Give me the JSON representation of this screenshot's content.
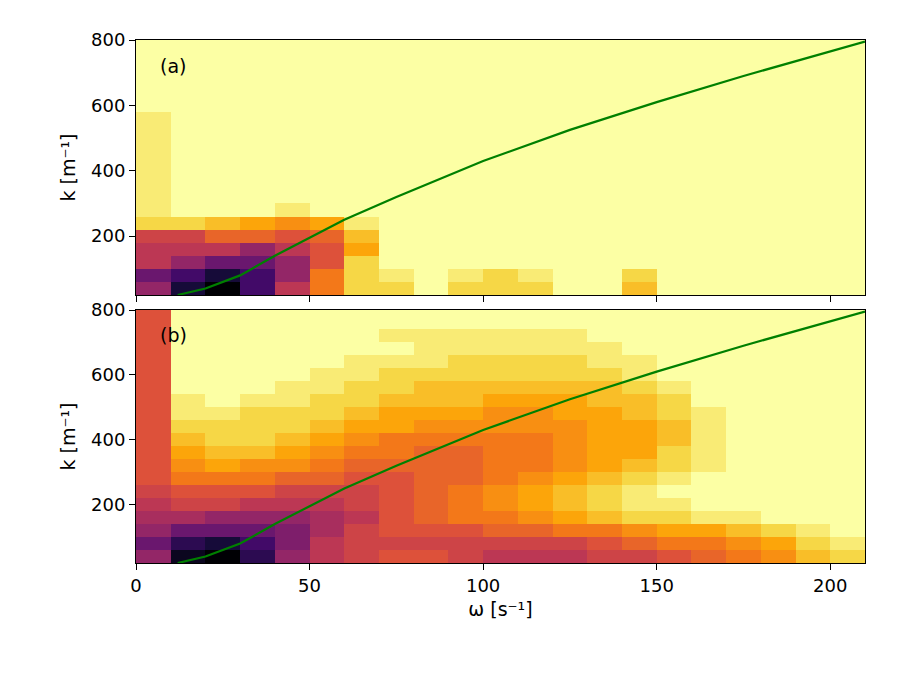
{
  "chart_data": [
    {
      "type": "heatmap",
      "label": "(a)",
      "y_label": "k [m⁻¹]",
      "xlim": [
        0,
        210
      ],
      "ylim": [
        20,
        800
      ],
      "xticks": [
        0,
        50,
        100,
        150,
        200
      ],
      "yticks": [
        200,
        400,
        600,
        800
      ],
      "tick_labels": "y",
      "grid": false,
      "omega_bins": [
        0,
        10,
        20,
        30,
        40,
        50,
        60,
        70,
        80,
        90,
        100,
        110,
        120,
        130,
        140,
        150,
        160,
        170,
        180,
        190,
        200,
        210
      ],
      "k_bins": [
        20,
        60,
        100,
        140,
        180,
        220,
        260,
        300,
        340,
        380,
        420,
        460,
        500,
        540,
        580,
        620,
        660,
        700,
        740,
        780,
        800
      ],
      "zlim": [
        0,
        1
      ],
      "cells": [
        [
          0.6,
          0.9,
          1,
          0.8,
          0.5,
          0.3,
          0.1,
          0.1,
          0,
          0.1,
          0.1,
          0.1,
          0,
          0,
          0.15,
          0,
          0,
          0,
          0,
          0,
          0
        ],
        [
          0.7,
          0.8,
          0.9,
          0.8,
          0.6,
          0.3,
          0.1,
          0.05,
          0,
          0.05,
          0.1,
          0.05,
          0,
          0,
          0.1,
          0,
          0,
          0,
          0,
          0,
          0
        ],
        [
          0.5,
          0.6,
          0.7,
          0.7,
          0.6,
          0.4,
          0.1,
          0,
          0,
          0,
          0,
          0,
          0,
          0,
          0,
          0,
          0,
          0,
          0,
          0,
          0
        ],
        [
          0.5,
          0.5,
          0.5,
          0.6,
          0.5,
          0.4,
          0.2,
          0,
          0,
          0,
          0,
          0,
          0,
          0,
          0,
          0,
          0,
          0,
          0,
          0,
          0
        ],
        [
          0.45,
          0.45,
          0.35,
          0.35,
          0.4,
          0.35,
          0.15,
          0,
          0,
          0,
          0,
          0,
          0,
          0,
          0,
          0,
          0,
          0,
          0,
          0,
          0
        ],
        [
          0.1,
          0.1,
          0.15,
          0.2,
          0.25,
          0.2,
          0.05,
          0,
          0,
          0,
          0,
          0,
          0,
          0,
          0,
          0,
          0,
          0,
          0,
          0,
          0
        ],
        [
          0.05,
          0,
          0,
          0,
          0.05,
          0,
          0,
          0,
          0,
          0,
          0,
          0,
          0,
          0,
          0,
          0,
          0,
          0,
          0,
          0,
          0
        ],
        [
          0.05,
          0,
          0,
          0,
          0,
          0,
          0,
          0,
          0,
          0,
          0,
          0,
          0,
          0,
          0,
          0,
          0,
          0,
          0,
          0,
          0
        ],
        [
          0.05,
          0,
          0,
          0,
          0,
          0,
          0,
          0,
          0,
          0,
          0,
          0,
          0,
          0,
          0,
          0,
          0,
          0,
          0,
          0,
          0
        ],
        [
          0.05,
          0,
          0,
          0,
          0,
          0,
          0,
          0,
          0,
          0,
          0,
          0,
          0,
          0,
          0,
          0,
          0,
          0,
          0,
          0,
          0
        ],
        [
          0.05,
          0,
          0,
          0,
          0,
          0,
          0,
          0,
          0,
          0,
          0,
          0,
          0,
          0,
          0,
          0,
          0,
          0,
          0,
          0,
          0
        ],
        [
          0.05,
          0,
          0,
          0,
          0,
          0,
          0,
          0,
          0,
          0,
          0,
          0,
          0,
          0,
          0,
          0,
          0,
          0,
          0,
          0,
          0
        ],
        [
          0.05,
          0,
          0,
          0,
          0,
          0,
          0,
          0,
          0,
          0,
          0,
          0,
          0,
          0,
          0,
          0,
          0,
          0,
          0,
          0,
          0
        ],
        [
          0.05,
          0,
          0,
          0,
          0,
          0,
          0,
          0,
          0,
          0,
          0,
          0,
          0,
          0,
          0,
          0,
          0,
          0,
          0,
          0,
          0
        ],
        [
          0,
          0,
          0,
          0,
          0,
          0,
          0,
          0,
          0,
          0,
          0,
          0,
          0,
          0,
          0,
          0,
          0,
          0,
          0,
          0,
          0
        ],
        [
          0,
          0,
          0,
          0,
          0,
          0,
          0,
          0,
          0,
          0,
          0,
          0,
          0,
          0,
          0,
          0,
          0,
          0,
          0,
          0,
          0
        ],
        [
          0,
          0,
          0,
          0,
          0,
          0,
          0,
          0,
          0,
          0,
          0,
          0,
          0,
          0,
          0,
          0,
          0,
          0,
          0,
          0,
          0
        ],
        [
          0,
          0,
          0,
          0,
          0,
          0,
          0,
          0,
          0,
          0,
          0,
          0,
          0,
          0,
          0,
          0,
          0,
          0,
          0,
          0,
          0
        ],
        [
          0,
          0,
          0,
          0,
          0,
          0,
          0,
          0,
          0,
          0,
          0,
          0,
          0,
          0,
          0,
          0,
          0,
          0,
          0,
          0,
          0
        ],
        [
          0,
          0,
          0,
          0,
          0,
          0,
          0,
          0,
          0,
          0,
          0,
          0,
          0,
          0,
          0,
          0,
          0,
          0,
          0,
          0,
          0
        ]
      ],
      "curve": {
        "color": "#008000",
        "x": [
          12,
          20,
          30,
          40,
          50,
          60,
          75,
          100,
          125,
          150,
          175,
          200,
          210
        ],
        "y": [
          20,
          40,
          80,
          140,
          195,
          250,
          320,
          430,
          525,
          610,
          690,
          765,
          795
        ]
      }
    },
    {
      "type": "heatmap",
      "label": "(b)",
      "x_label": "ω [s⁻¹]",
      "y_label": "k [m⁻¹]",
      "xlim": [
        0,
        210
      ],
      "ylim": [
        20,
        800
      ],
      "xticks": [
        0,
        50,
        100,
        150,
        200
      ],
      "yticks": [
        200,
        400,
        600,
        800
      ],
      "grid": false,
      "omega_bins": [
        0,
        10,
        20,
        30,
        40,
        50,
        60,
        70,
        80,
        90,
        100,
        110,
        120,
        130,
        140,
        150,
        160,
        170,
        180,
        190,
        200,
        210
      ],
      "k_bins": [
        20,
        60,
        100,
        140,
        180,
        220,
        260,
        300,
        340,
        380,
        420,
        460,
        500,
        540,
        580,
        620,
        660,
        700,
        740,
        780,
        800
      ],
      "zlim": [
        0,
        1
      ],
      "cells": [
        [
          0.6,
          0.95,
          1,
          0.85,
          0.6,
          0.5,
          0.45,
          0.4,
          0.4,
          0.45,
          0.5,
          0.5,
          0.5,
          0.45,
          0.45,
          0.4,
          0.35,
          0.3,
          0.25,
          0.15,
          0.1
        ],
        [
          0.7,
          0.85,
          0.9,
          0.8,
          0.65,
          0.5,
          0.45,
          0.45,
          0.45,
          0.45,
          0.45,
          0.45,
          0.45,
          0.4,
          0.35,
          0.3,
          0.3,
          0.25,
          0.2,
          0.1,
          0.05
        ],
        [
          0.6,
          0.7,
          0.7,
          0.7,
          0.65,
          0.55,
          0.45,
          0.4,
          0.4,
          0.4,
          0.35,
          0.35,
          0.3,
          0.3,
          0.25,
          0.2,
          0.2,
          0.15,
          0.1,
          0.05,
          0
        ],
        [
          0.55,
          0.55,
          0.6,
          0.6,
          0.6,
          0.55,
          0.5,
          0.4,
          0.35,
          0.3,
          0.3,
          0.25,
          0.2,
          0.15,
          0.1,
          0.1,
          0.05,
          0.05,
          0,
          0,
          0
        ],
        [
          0.5,
          0.45,
          0.45,
          0.5,
          0.5,
          0.5,
          0.45,
          0.4,
          0.35,
          0.3,
          0.25,
          0.2,
          0.15,
          0.1,
          0.05,
          0.05,
          0,
          0,
          0,
          0,
          0
        ],
        [
          0.45,
          0.4,
          0.4,
          0.4,
          0.45,
          0.45,
          0.45,
          0.4,
          0.35,
          0.3,
          0.25,
          0.2,
          0.15,
          0.1,
          0.05,
          0,
          0,
          0,
          0,
          0,
          0
        ],
        [
          0.4,
          0.3,
          0.3,
          0.3,
          0.35,
          0.35,
          0.4,
          0.4,
          0.35,
          0.35,
          0.3,
          0.25,
          0.2,
          0.15,
          0.1,
          0.05,
          0,
          0,
          0,
          0,
          0
        ],
        [
          0.4,
          0.25,
          0.2,
          0.25,
          0.25,
          0.3,
          0.35,
          0.35,
          0.35,
          0.35,
          0.3,
          0.3,
          0.25,
          0.2,
          0.15,
          0.1,
          0.05,
          0,
          0,
          0,
          0
        ],
        [
          0.4,
          0.2,
          0.15,
          0.15,
          0.2,
          0.25,
          0.3,
          0.3,
          0.35,
          0.35,
          0.3,
          0.3,
          0.25,
          0.2,
          0.2,
          0.1,
          0.05,
          0,
          0,
          0,
          0
        ],
        [
          0.4,
          0.15,
          0.1,
          0.1,
          0.15,
          0.2,
          0.25,
          0.3,
          0.3,
          0.3,
          0.3,
          0.3,
          0.25,
          0.2,
          0.2,
          0.15,
          0.05,
          0,
          0,
          0,
          0
        ],
        [
          0.4,
          0.1,
          0.1,
          0.1,
          0.1,
          0.15,
          0.2,
          0.2,
          0.25,
          0.25,
          0.25,
          0.25,
          0.25,
          0.2,
          0.2,
          0.15,
          0.05,
          0,
          0,
          0,
          0
        ],
        [
          0.4,
          0.05,
          0.05,
          0.1,
          0.1,
          0.1,
          0.15,
          0.2,
          0.2,
          0.2,
          0.25,
          0.25,
          0.2,
          0.2,
          0.15,
          0.1,
          0.05,
          0,
          0,
          0,
          0
        ],
        [
          0.4,
          0.05,
          0,
          0.05,
          0.05,
          0.1,
          0.1,
          0.15,
          0.15,
          0.15,
          0.2,
          0.2,
          0.2,
          0.15,
          0.15,
          0.1,
          0,
          0,
          0,
          0,
          0
        ],
        [
          0.4,
          0,
          0,
          0,
          0.05,
          0.05,
          0.1,
          0.1,
          0.15,
          0.15,
          0.15,
          0.15,
          0.15,
          0.15,
          0.1,
          0.05,
          0,
          0,
          0,
          0,
          0
        ],
        [
          0.4,
          0,
          0,
          0,
          0,
          0.05,
          0.05,
          0.1,
          0.1,
          0.1,
          0.1,
          0.1,
          0.1,
          0.1,
          0.05,
          0,
          0,
          0,
          0,
          0,
          0
        ],
        [
          0.4,
          0,
          0,
          0,
          0,
          0,
          0.05,
          0.05,
          0.05,
          0.1,
          0.1,
          0.1,
          0.1,
          0.05,
          0.05,
          0,
          0,
          0,
          0,
          0,
          0
        ],
        [
          0.4,
          0,
          0,
          0,
          0,
          0,
          0,
          0,
          0.05,
          0.05,
          0.05,
          0.05,
          0.05,
          0.05,
          0,
          0,
          0,
          0,
          0,
          0,
          0
        ],
        [
          0.4,
          0,
          0,
          0,
          0,
          0,
          0,
          0.05,
          0.05,
          0.05,
          0.05,
          0.05,
          0.05,
          0,
          0,
          0,
          0,
          0,
          0,
          0,
          0
        ],
        [
          0.4,
          0,
          0,
          0,
          0,
          0,
          0,
          0,
          0,
          0,
          0,
          0,
          0,
          0,
          0,
          0,
          0,
          0,
          0,
          0,
          0
        ],
        [
          0.4,
          0,
          0,
          0,
          0,
          0,
          0,
          0,
          0,
          0,
          0,
          0,
          0,
          0,
          0,
          0,
          0,
          0,
          0,
          0,
          0
        ]
      ],
      "curve": {
        "color": "#008000",
        "x": [
          12,
          20,
          30,
          40,
          50,
          60,
          75,
          100,
          125,
          150,
          175,
          200,
          210
        ],
        "y": [
          20,
          40,
          80,
          140,
          195,
          250,
          320,
          430,
          525,
          610,
          690,
          765,
          795
        ]
      }
    }
  ]
}
